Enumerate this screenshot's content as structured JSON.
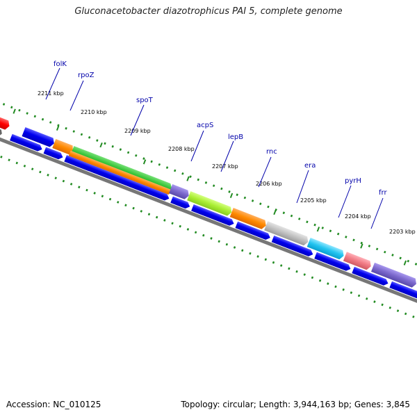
{
  "title": "Gluconacetobacter diazotrophicus PAI 5, complete genome",
  "footer": {
    "accession": "Accession: NC_010125",
    "summary": "Topology: circular; Length: 3,944,163 bp; Genes: 3,845"
  },
  "ticks": [
    "2211 kbp",
    "2210 kbp",
    "2209 kbp",
    "2208 kbp",
    "2207 kbp",
    "2206 kbp",
    "2205 kbp",
    "2204 kbp",
    "2203 kbp"
  ],
  "genes": [
    "folK",
    "rpoZ",
    "spoT",
    "acpS",
    "lepB",
    "rnc",
    "era",
    "pyrH",
    "frr"
  ],
  "colors": {
    "cds": "#0000ee",
    "trna": "#ff7a00",
    "rrna_green": "#33c233",
    "lime": "#aaee33",
    "purple": "#7b68cc",
    "gray_feature": "#c0c0c0",
    "cyan": "#22c4f0",
    "pink": "#f07a84",
    "red": "#ff0000",
    "backbone": "#777777",
    "gc_dots": "#228b22",
    "label_blue": "#0000aa"
  }
}
